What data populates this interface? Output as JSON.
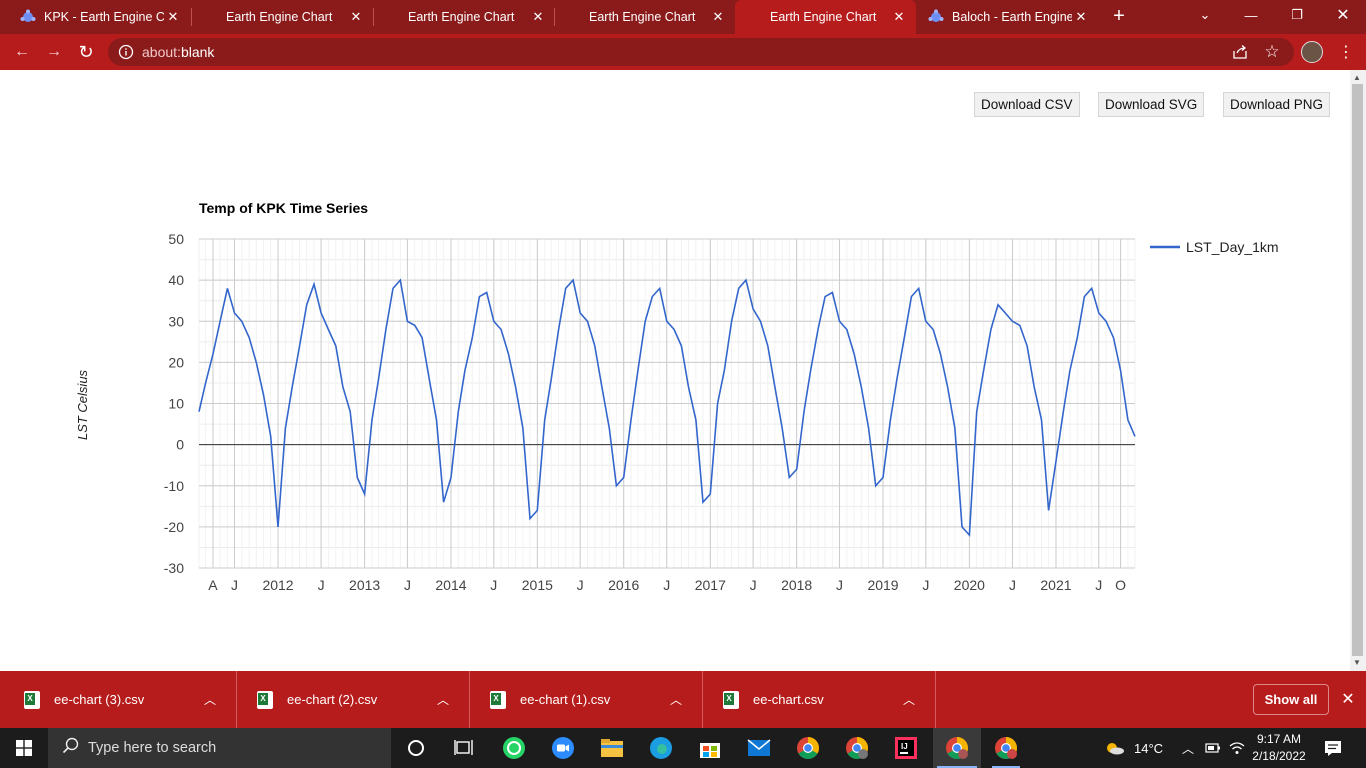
{
  "tabs": [
    {
      "label": "KPK - Earth Engine Co",
      "icon": "earth-engine-icon",
      "active": false
    },
    {
      "label": "Earth Engine Chart",
      "icon": "",
      "active": false
    },
    {
      "label": "Earth Engine Chart",
      "icon": "",
      "active": false
    },
    {
      "label": "Earth Engine Chart",
      "icon": "",
      "active": false
    },
    {
      "label": "Earth Engine Chart",
      "icon": "",
      "active": true
    },
    {
      "label": "Baloch - Earth Engine",
      "icon": "earth-engine-icon",
      "active": false
    }
  ],
  "address": {
    "scheme": "about:",
    "path": "blank"
  },
  "buttons": {
    "csv": "Download CSV",
    "svg": "Download SVG",
    "png": "Download PNG"
  },
  "chart_data": {
    "type": "line",
    "title": "Temp of KPK Time Series",
    "ylabel": "LST Celsius",
    "xlabel": "",
    "legend": "right",
    "grid": true,
    "ylim": [
      -30,
      50
    ],
    "yticks": [
      50,
      40,
      30,
      20,
      10,
      0,
      -10,
      -20,
      -30
    ],
    "xlim": [
      "2011-02-01",
      "2021-12-01"
    ],
    "xticks": [
      {
        "label": "A",
        "date": "2011-04-01"
      },
      {
        "label": "J",
        "date": "2011-07-01"
      },
      {
        "label": "2012",
        "date": "2012-01-01"
      },
      {
        "label": "J",
        "date": "2012-07-01"
      },
      {
        "label": "2013",
        "date": "2013-01-01"
      },
      {
        "label": "J",
        "date": "2013-07-01"
      },
      {
        "label": "2014",
        "date": "2014-01-01"
      },
      {
        "label": "J",
        "date": "2014-07-01"
      },
      {
        "label": "2015",
        "date": "2015-01-01"
      },
      {
        "label": "J",
        "date": "2015-07-01"
      },
      {
        "label": "2016",
        "date": "2016-01-01"
      },
      {
        "label": "J",
        "date": "2016-07-01"
      },
      {
        "label": "2017",
        "date": "2017-01-01"
      },
      {
        "label": "J",
        "date": "2017-07-01"
      },
      {
        "label": "2018",
        "date": "2018-01-01"
      },
      {
        "label": "J",
        "date": "2018-07-01"
      },
      {
        "label": "2019",
        "date": "2019-01-01"
      },
      {
        "label": "J",
        "date": "2019-07-01"
      },
      {
        "label": "2020",
        "date": "2020-01-01"
      },
      {
        "label": "J",
        "date": "2020-07-01"
      },
      {
        "label": "2021",
        "date": "2021-01-01"
      },
      {
        "label": "J",
        "date": "2021-07-01"
      },
      {
        "label": "O",
        "date": "2021-10-01"
      }
    ],
    "series": [
      {
        "name": "LST_Day_1km",
        "color": "#3366cc",
        "x": [
          "2011-02-01",
          "2011-03-01",
          "2011-04-01",
          "2011-05-01",
          "2011-06-01",
          "2011-07-01",
          "2011-08-01",
          "2011-09-01",
          "2011-10-01",
          "2011-11-01",
          "2011-12-01",
          "2012-01-01",
          "2012-02-01",
          "2012-03-01",
          "2012-04-01",
          "2012-05-01",
          "2012-06-01",
          "2012-07-01",
          "2012-08-01",
          "2012-09-01",
          "2012-10-01",
          "2012-11-01",
          "2012-12-01",
          "2013-01-01",
          "2013-02-01",
          "2013-03-01",
          "2013-04-01",
          "2013-05-01",
          "2013-06-01",
          "2013-07-01",
          "2013-08-01",
          "2013-09-01",
          "2013-10-01",
          "2013-11-01",
          "2013-12-01",
          "2014-01-01",
          "2014-02-01",
          "2014-03-01",
          "2014-04-01",
          "2014-05-01",
          "2014-06-01",
          "2014-07-01",
          "2014-08-01",
          "2014-09-01",
          "2014-10-01",
          "2014-11-01",
          "2014-12-01",
          "2015-01-01",
          "2015-02-01",
          "2015-03-01",
          "2015-04-01",
          "2015-05-01",
          "2015-06-01",
          "2015-07-01",
          "2015-08-01",
          "2015-09-01",
          "2015-10-01",
          "2015-11-01",
          "2015-12-01",
          "2016-01-01",
          "2016-02-01",
          "2016-03-01",
          "2016-04-01",
          "2016-05-01",
          "2016-06-01",
          "2016-07-01",
          "2016-08-01",
          "2016-09-01",
          "2016-10-01",
          "2016-11-01",
          "2016-12-01",
          "2017-01-01",
          "2017-02-01",
          "2017-03-01",
          "2017-04-01",
          "2017-05-01",
          "2017-06-01",
          "2017-07-01",
          "2017-08-01",
          "2017-09-01",
          "2017-10-01",
          "2017-11-01",
          "2017-12-01",
          "2018-01-01",
          "2018-02-01",
          "2018-03-01",
          "2018-04-01",
          "2018-05-01",
          "2018-06-01",
          "2018-07-01",
          "2018-08-01",
          "2018-09-01",
          "2018-10-01",
          "2018-11-01",
          "2018-12-01",
          "2019-01-01",
          "2019-02-01",
          "2019-03-01",
          "2019-04-01",
          "2019-05-01",
          "2019-06-01",
          "2019-07-01",
          "2019-08-01",
          "2019-09-01",
          "2019-10-01",
          "2019-11-01",
          "2019-12-01",
          "2020-01-01",
          "2020-02-01",
          "2020-03-01",
          "2020-04-01",
          "2020-05-01",
          "2020-06-01",
          "2020-07-01",
          "2020-08-01",
          "2020-09-01",
          "2020-10-01",
          "2020-11-01",
          "2020-12-01",
          "2021-01-01",
          "2021-02-01",
          "2021-03-01",
          "2021-04-01",
          "2021-05-01",
          "2021-06-01",
          "2021-07-01",
          "2021-08-01",
          "2021-09-01",
          "2021-10-01",
          "2021-11-01",
          "2021-12-01"
        ],
        "y": [
          8,
          15,
          22,
          30,
          38,
          32,
          30,
          26,
          20,
          12,
          2,
          -20,
          4,
          14,
          24,
          34,
          39,
          32,
          28,
          24,
          14,
          8,
          -8,
          -12,
          6,
          16,
          28,
          38,
          40,
          30,
          29,
          26,
          16,
          6,
          -14,
          -8,
          8,
          18,
          26,
          36,
          37,
          30,
          28,
          22,
          14,
          4,
          -18,
          -16,
          6,
          16,
          28,
          38,
          40,
          32,
          30,
          24,
          14,
          4,
          -10,
          -8,
          6,
          18,
          30,
          36,
          38,
          30,
          28,
          24,
          14,
          6,
          -14,
          -12,
          10,
          18,
          30,
          38,
          40,
          33,
          30,
          24,
          14,
          4,
          -8,
          -6,
          8,
          18,
          28,
          36,
          37,
          30,
          28,
          22,
          14,
          4,
          -10,
          -8,
          6,
          16,
          26,
          36,
          38,
          30,
          28,
          22,
          14,
          4,
          -20,
          -22,
          8,
          18,
          28,
          34,
          32,
          30,
          29,
          24,
          14,
          6,
          -16,
          -4,
          8,
          18,
          26,
          36,
          38,
          32,
          30,
          26,
          18,
          6,
          2
        ]
      }
    ]
  },
  "downloads": [
    {
      "name": "ee-chart (3).csv"
    },
    {
      "name": "ee-chart (2).csv"
    },
    {
      "name": "ee-chart (1).csv"
    },
    {
      "name": "ee-chart.csv"
    }
  ],
  "show_all": "Show all",
  "taskbar": {
    "search_placeholder": "Type here to search",
    "weather": "14°C",
    "time": "9:17 AM",
    "date": "2/18/2022"
  }
}
